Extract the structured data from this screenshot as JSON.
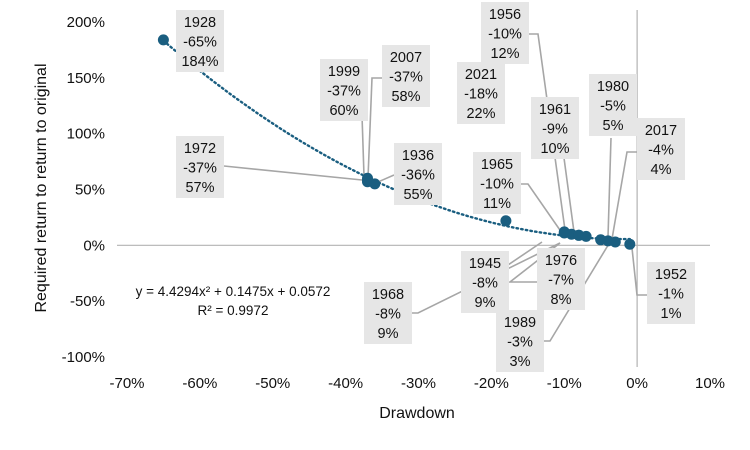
{
  "chart_data": {
    "type": "scatter",
    "xlabel": "Drawdown",
    "ylabel": "Required return to return to original",
    "xlim": [
      -0.7,
      0.1
    ],
    "ylim": [
      -1.0,
      2.0
    ],
    "x_ticks": [
      "-70%",
      "-60%",
      "-50%",
      "-40%",
      "-30%",
      "-20%",
      "-10%",
      "0%",
      "10%"
    ],
    "y_ticks": [
      "200%",
      "150%",
      "100%",
      "50%",
      "0%",
      "-50%",
      "-100%"
    ],
    "point_color": "#1a5e80",
    "trendline_color": "#1a5e80",
    "leader_color": "#a6a6a6",
    "label_bg": "#e6e6e6",
    "points": [
      {
        "year": "1928",
        "drawdown": -0.65,
        "required": 1.84,
        "dd_label": "-65%",
        "req_label": "184%"
      },
      {
        "year": "1999",
        "drawdown": -0.37,
        "required": 0.6,
        "dd_label": "-37%",
        "req_label": "60%"
      },
      {
        "year": "2007",
        "drawdown": -0.37,
        "required": 0.58,
        "dd_label": "-37%",
        "req_label": "58%"
      },
      {
        "year": "1972",
        "drawdown": -0.37,
        "required": 0.57,
        "dd_label": "-37%",
        "req_label": "57%"
      },
      {
        "year": "1936",
        "drawdown": -0.36,
        "required": 0.55,
        "dd_label": "-36%",
        "req_label": "55%"
      },
      {
        "year": "2021",
        "drawdown": -0.18,
        "required": 0.22,
        "dd_label": "-18%",
        "req_label": "22%"
      },
      {
        "year": "1956",
        "drawdown": -0.1,
        "required": 0.12,
        "dd_label": "-10%",
        "req_label": "12%"
      },
      {
        "year": "1965",
        "drawdown": -0.1,
        "required": 0.11,
        "dd_label": "-10%",
        "req_label": "11%"
      },
      {
        "year": "1961",
        "drawdown": -0.09,
        "required": 0.1,
        "dd_label": "-9%",
        "req_label": "10%"
      },
      {
        "year": "1945",
        "drawdown": -0.08,
        "required": 0.09,
        "dd_label": "-8%",
        "req_label": "9%"
      },
      {
        "year": "1968",
        "drawdown": -0.08,
        "required": 0.09,
        "dd_label": "-8%",
        "req_label": "9%"
      },
      {
        "year": "1976",
        "drawdown": -0.07,
        "required": 0.08,
        "dd_label": "-7%",
        "req_label": "8%"
      },
      {
        "year": "1980",
        "drawdown": -0.05,
        "required": 0.05,
        "dd_label": "-5%",
        "req_label": "5%"
      },
      {
        "year": "2017",
        "drawdown": -0.04,
        "required": 0.04,
        "dd_label": "-4%",
        "req_label": "4%"
      },
      {
        "year": "1989",
        "drawdown": -0.03,
        "required": 0.03,
        "dd_label": "-3%",
        "req_label": "3%"
      },
      {
        "year": "1952",
        "drawdown": -0.01,
        "required": 0.01,
        "dd_label": "-1%",
        "req_label": "1%"
      }
    ],
    "trendline": {
      "type": "polynomial-2",
      "equation": "y = 4.4294x² + 0.1475x + 0.0572",
      "r_squared": "R² = 0.9972",
      "coefficients": {
        "a": 4.4294,
        "b": 0.1475,
        "c": 0.0572
      }
    }
  }
}
